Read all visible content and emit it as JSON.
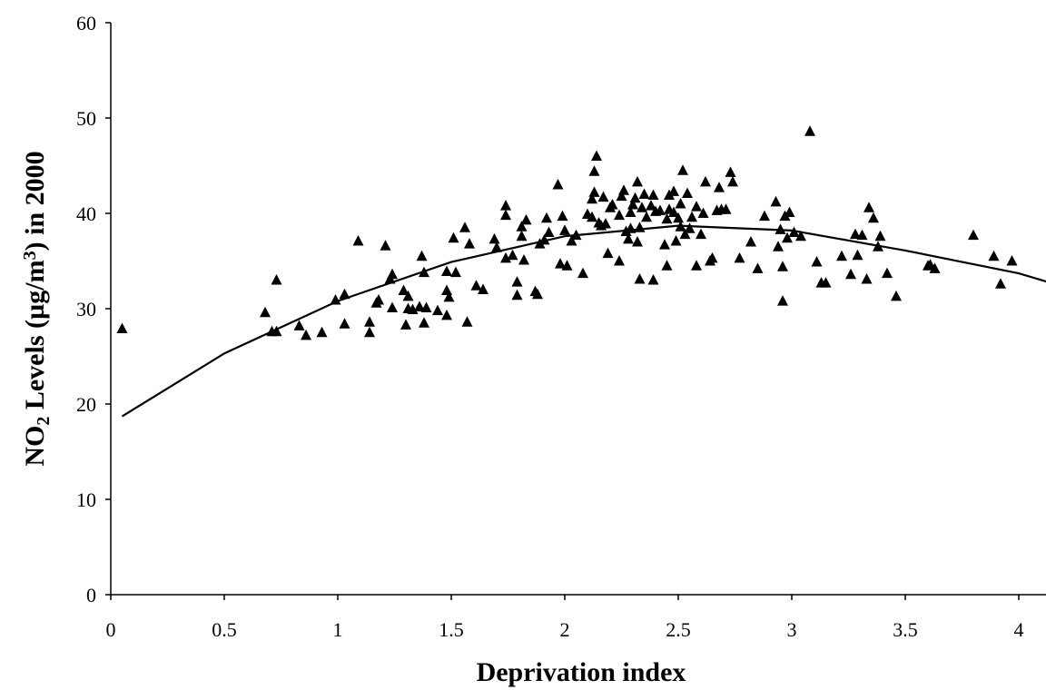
{
  "chart_data": {
    "type": "scatter",
    "xlabel": "Deprivation index",
    "ylabel": {
      "parts": [
        {
          "text": "NO",
          "style": "normal"
        },
        {
          "text": "2",
          "style": "sub"
        },
        {
          "text": " Levels (µg/m",
          "style": "normal"
        },
        {
          "text": "3",
          "style": "sup"
        },
        {
          "text": ") in 2000",
          "style": "normal"
        }
      ]
    },
    "xlim": [
      0,
      4.2
    ],
    "ylim": [
      0,
      60
    ],
    "x_ticks": [
      "0",
      "0.5",
      "1",
      "1.5",
      "2",
      "2.5",
      "3",
      "3.5",
      "4"
    ],
    "y_ticks": [
      "0",
      "10",
      "20",
      "30",
      "40",
      "50",
      "60"
    ],
    "grid": false,
    "legend": "none",
    "marker": "triangle",
    "marker_color": "#000000",
    "trendline": {
      "type": "polynomial",
      "degree": 2,
      "x_range": [
        0.05,
        4.2
      ],
      "points": [
        [
          0.05,
          18.7
        ],
        [
          0.5,
          25.3
        ],
        [
          1.0,
          30.8
        ],
        [
          1.5,
          34.9
        ],
        [
          2.0,
          37.6
        ],
        [
          2.5,
          38.7
        ],
        [
          3.0,
          38.2
        ],
        [
          3.5,
          36.1
        ],
        [
          4.0,
          33.7
        ],
        [
          4.2,
          32.3
        ]
      ]
    },
    "series": [
      {
        "points": [
          [
            0.05,
            27.9
          ],
          [
            0.68,
            29.6
          ],
          [
            0.71,
            27.6
          ],
          [
            0.73,
            33.0
          ],
          [
            0.73,
            27.6
          ],
          [
            0.83,
            28.2
          ],
          [
            0.86,
            27.2
          ],
          [
            0.93,
            27.5
          ],
          [
            0.99,
            30.9
          ],
          [
            1.03,
            31.5
          ],
          [
            1.03,
            28.4
          ],
          [
            1.09,
            37.1
          ],
          [
            1.14,
            28.6
          ],
          [
            1.14,
            27.5
          ],
          [
            1.17,
            30.6
          ],
          [
            1.18,
            30.9
          ],
          [
            1.21,
            36.6
          ],
          [
            1.23,
            33.1
          ],
          [
            1.24,
            33.6
          ],
          [
            1.24,
            30.1
          ],
          [
            1.29,
            31.9
          ],
          [
            1.3,
            28.3
          ],
          [
            1.31,
            31.3
          ],
          [
            1.31,
            30.0
          ],
          [
            1.33,
            29.9
          ],
          [
            1.36,
            30.2
          ],
          [
            1.37,
            35.5
          ],
          [
            1.38,
            33.8
          ],
          [
            1.38,
            28.5
          ],
          [
            1.39,
            30.1
          ],
          [
            1.44,
            29.8
          ],
          [
            1.48,
            33.9
          ],
          [
            1.48,
            31.9
          ],
          [
            1.48,
            29.3
          ],
          [
            1.49,
            31.2
          ],
          [
            1.51,
            37.4
          ],
          [
            1.52,
            33.8
          ],
          [
            1.56,
            38.5
          ],
          [
            1.57,
            28.6
          ],
          [
            1.58,
            36.8
          ],
          [
            1.61,
            32.4
          ],
          [
            1.64,
            32.0
          ],
          [
            1.69,
            37.3
          ],
          [
            1.7,
            36.4
          ],
          [
            1.74,
            40.8
          ],
          [
            1.74,
            39.8
          ],
          [
            1.74,
            35.3
          ],
          [
            1.77,
            35.6
          ],
          [
            1.79,
            32.8
          ],
          [
            1.79,
            31.4
          ],
          [
            1.81,
            38.6
          ],
          [
            1.81,
            37.6
          ],
          [
            1.82,
            35.1
          ],
          [
            1.83,
            39.3
          ],
          [
            1.87,
            31.8
          ],
          [
            1.88,
            31.5
          ],
          [
            1.89,
            36.8
          ],
          [
            1.91,
            37.2
          ],
          [
            1.92,
            39.5
          ],
          [
            1.93,
            38.0
          ],
          [
            1.97,
            43.0
          ],
          [
            1.98,
            34.7
          ],
          [
            1.99,
            39.7
          ],
          [
            2.0,
            38.2
          ],
          [
            2.01,
            34.5
          ],
          [
            2.03,
            37.1
          ],
          [
            2.05,
            37.7
          ],
          [
            2.08,
            33.7
          ],
          [
            2.1,
            39.9
          ],
          [
            2.12,
            41.5
          ],
          [
            2.12,
            39.6
          ],
          [
            2.13,
            44.4
          ],
          [
            2.13,
            42.2
          ],
          [
            2.14,
            46.0
          ],
          [
            2.15,
            39.0
          ],
          [
            2.16,
            38.7
          ],
          [
            2.17,
            41.7
          ],
          [
            2.18,
            38.9
          ],
          [
            2.19,
            35.8
          ],
          [
            2.2,
            40.6
          ],
          [
            2.21,
            40.9
          ],
          [
            2.24,
            35.0
          ],
          [
            2.24,
            39.8
          ],
          [
            2.25,
            41.8
          ],
          [
            2.26,
            42.4
          ],
          [
            2.27,
            38.1
          ],
          [
            2.28,
            37.3
          ],
          [
            2.29,
            40.1
          ],
          [
            2.29,
            38.4
          ],
          [
            2.3,
            40.9
          ],
          [
            2.31,
            41.6
          ],
          [
            2.32,
            43.3
          ],
          [
            2.32,
            37.0
          ],
          [
            2.33,
            38.5
          ],
          [
            2.33,
            33.1
          ],
          [
            2.34,
            40.6
          ],
          [
            2.35,
            42.0
          ],
          [
            2.36,
            39.6
          ],
          [
            2.38,
            40.8
          ],
          [
            2.39,
            41.9
          ],
          [
            2.39,
            33.0
          ],
          [
            2.4,
            40.2
          ],
          [
            2.42,
            40.3
          ],
          [
            2.44,
            36.7
          ],
          [
            2.45,
            34.5
          ],
          [
            2.45,
            39.4
          ],
          [
            2.46,
            40.4
          ],
          [
            2.46,
            41.9
          ],
          [
            2.48,
            42.3
          ],
          [
            2.48,
            40.1
          ],
          [
            2.49,
            37.1
          ],
          [
            2.5,
            39.5
          ],
          [
            2.51,
            41.0
          ],
          [
            2.51,
            38.6
          ],
          [
            2.52,
            44.5
          ],
          [
            2.53,
            37.8
          ],
          [
            2.54,
            42.1
          ],
          [
            2.55,
            38.4
          ],
          [
            2.56,
            39.6
          ],
          [
            2.58,
            40.7
          ],
          [
            2.58,
            34.5
          ],
          [
            2.6,
            37.8
          ],
          [
            2.61,
            40.0
          ],
          [
            2.62,
            43.3
          ],
          [
            2.64,
            35.0
          ],
          [
            2.65,
            35.3
          ],
          [
            2.67,
            40.3
          ],
          [
            2.68,
            42.7
          ],
          [
            2.69,
            40.4
          ],
          [
            2.71,
            40.4
          ],
          [
            2.73,
            44.3
          ],
          [
            2.74,
            43.3
          ],
          [
            2.77,
            35.3
          ],
          [
            2.82,
            37.0
          ],
          [
            2.85,
            34.2
          ],
          [
            2.88,
            39.7
          ],
          [
            2.93,
            41.2
          ],
          [
            2.94,
            36.5
          ],
          [
            2.95,
            38.3
          ],
          [
            2.96,
            30.8
          ],
          [
            2.96,
            34.4
          ],
          [
            2.97,
            39.7
          ],
          [
            2.98,
            37.4
          ],
          [
            2.99,
            40.1
          ],
          [
            3.01,
            38.0
          ],
          [
            3.04,
            37.6
          ],
          [
            3.08,
            48.6
          ],
          [
            3.11,
            34.9
          ],
          [
            3.13,
            32.7
          ],
          [
            3.15,
            32.7
          ],
          [
            3.22,
            35.5
          ],
          [
            3.26,
            33.6
          ],
          [
            3.28,
            37.8
          ],
          [
            3.29,
            35.6
          ],
          [
            3.31,
            37.7
          ],
          [
            3.33,
            33.1
          ],
          [
            3.34,
            40.6
          ],
          [
            3.36,
            39.5
          ],
          [
            3.38,
            36.5
          ],
          [
            3.39,
            37.6
          ],
          [
            3.42,
            33.7
          ],
          [
            3.46,
            31.3
          ],
          [
            3.6,
            34.5
          ],
          [
            3.61,
            34.6
          ],
          [
            3.63,
            34.2
          ],
          [
            3.8,
            37.7
          ],
          [
            3.89,
            35.5
          ],
          [
            3.92,
            32.6
          ],
          [
            3.97,
            35.0
          ]
        ]
      }
    ]
  }
}
